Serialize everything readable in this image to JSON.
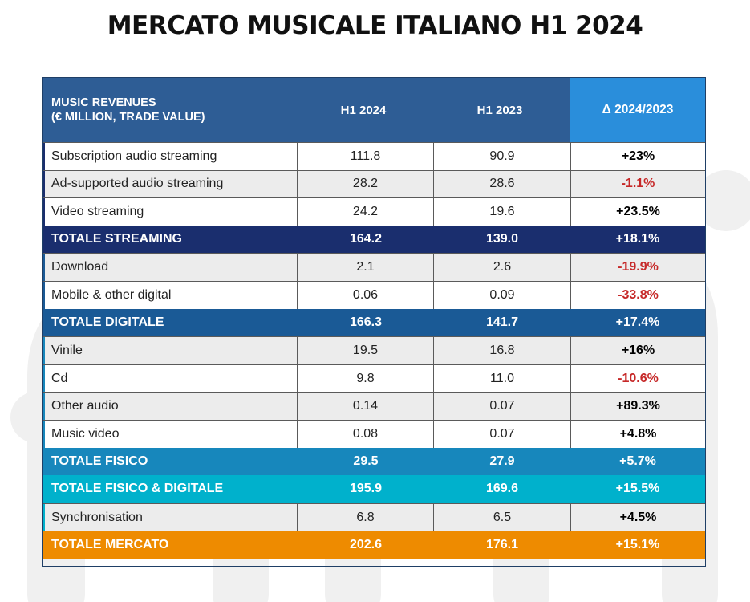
{
  "title": "MERCATO MUSICALE ITALIANO H1 2024",
  "header": {
    "label_line1": "MUSIC REVENUES",
    "label_line2": "(€ MILLION, TRADE VALUE)",
    "col_a": "H1 2024",
    "col_b": "H1 2023",
    "col_delta": "Δ 2024/2023"
  },
  "colors": {
    "header_bg": "#2e5d95",
    "delta_header_bg": "#2a8edb",
    "totale_streaming": "#1a2e6e",
    "totale_digitale": "#1a5a96",
    "totale_fisico": "#1787bc",
    "totale_fisico_digitale": "#00b1cc",
    "totale_mercato": "#ee8b00",
    "negative": "#c62828"
  },
  "rows": [
    {
      "label": "Subscription audio streaming",
      "a": "111.8",
      "b": "90.9",
      "delta": "+23%",
      "kind": "data",
      "neg": false
    },
    {
      "label": "Ad-supported audio streaming",
      "a": "28.2",
      "b": "28.6",
      "delta": "-1.1%",
      "kind": "data",
      "neg": true
    },
    {
      "label": "Video streaming",
      "a": "24.2",
      "b": "19.6",
      "delta": "+23.5%",
      "kind": "data",
      "neg": false
    },
    {
      "label": "TOTALE STREAMING",
      "a": "164.2",
      "b": "139.0",
      "delta": "+18.1%",
      "kind": "total",
      "color": "#1a2e6e"
    },
    {
      "label": "Download",
      "a": "2.1",
      "b": "2.6",
      "delta": "-19.9%",
      "kind": "data",
      "neg": true
    },
    {
      "label": "Mobile & other digital",
      "a": "0.06",
      "b": "0.09",
      "delta": "-33.8%",
      "kind": "data",
      "neg": true
    },
    {
      "label": "TOTALE DIGITALE",
      "a": "166.3",
      "b": "141.7",
      "delta": "+17.4%",
      "kind": "total",
      "color": "#1a5a96"
    },
    {
      "label": "Vinile",
      "a": "19.5",
      "b": "16.8",
      "delta": "+16%",
      "kind": "data",
      "neg": false
    },
    {
      "label": "Cd",
      "a": "9.8",
      "b": "11.0",
      "delta": "-10.6%",
      "kind": "data",
      "neg": true
    },
    {
      "label": "Other audio",
      "a": "0.14",
      "b": "0.07",
      "delta": "+89.3%",
      "kind": "data",
      "neg": false
    },
    {
      "label": "Music video",
      "a": "0.08",
      "b": "0.07",
      "delta": "+4.8%",
      "kind": "data",
      "neg": false
    },
    {
      "label": "TOTALE FISICO",
      "a": "29.5",
      "b": "27.9",
      "delta": "+5.7%",
      "kind": "total",
      "color": "#1787bc"
    },
    {
      "label": "TOTALE FISICO & DIGITALE",
      "a": "195.9",
      "b": "169.6",
      "delta": "+15.5%",
      "kind": "total",
      "color": "#00b1cc"
    },
    {
      "label": "Synchronisation",
      "a": "6.8",
      "b": "6.5",
      "delta": "+4.5%",
      "kind": "data",
      "neg": false
    },
    {
      "label": "TOTALE MERCATO",
      "a": "202.6",
      "b": "176.1",
      "delta": "+15.1%",
      "kind": "total",
      "color": "#ee8b00"
    }
  ]
}
